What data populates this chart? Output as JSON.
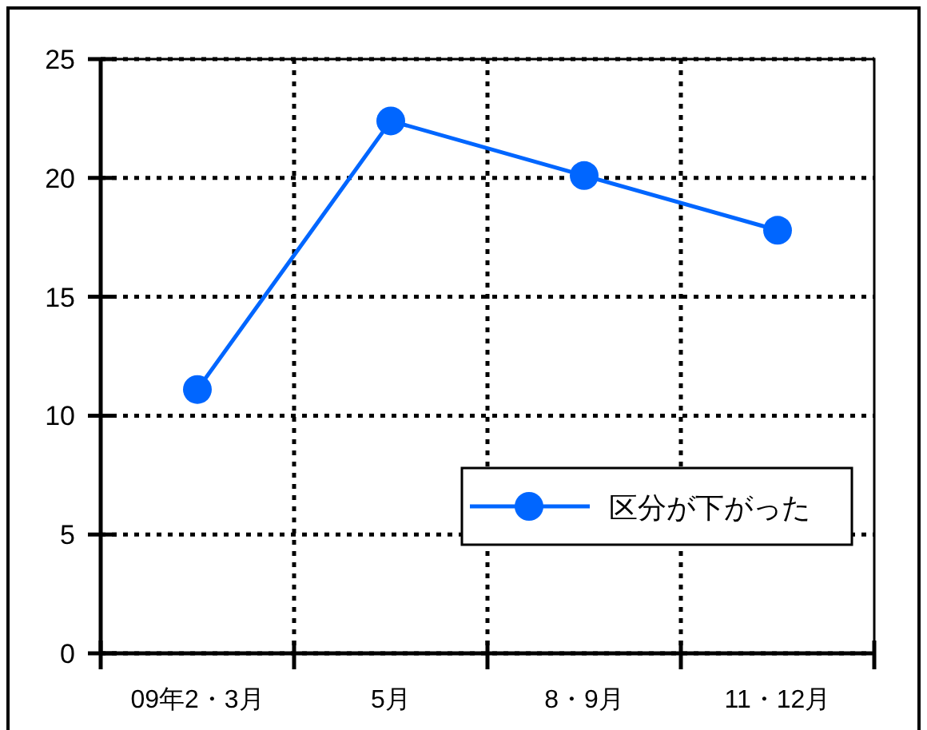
{
  "chart_data": {
    "type": "line",
    "categories": [
      "09年2・3月",
      "5月",
      "8・9月",
      "11・12月"
    ],
    "series": [
      {
        "name": "区分が下がった",
        "color": "#0066ff",
        "values": [
          11.1,
          22.4,
          20.1,
          17.8
        ]
      }
    ],
    "ylim": [
      0,
      25
    ],
    "yticks": [
      0,
      5,
      10,
      15,
      20,
      25
    ],
    "grid": true,
    "legend": "bottom right",
    "marker": "circle",
    "line_style": "solid"
  }
}
